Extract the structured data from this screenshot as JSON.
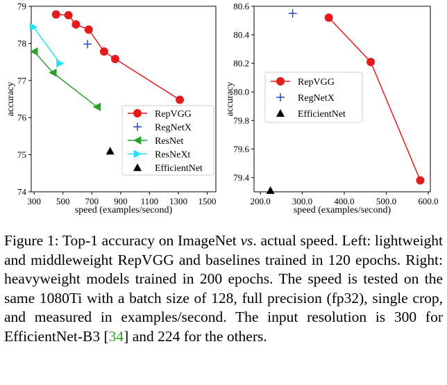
{
  "chart_data": [
    {
      "type": "line",
      "title": "",
      "xlabel": "speed (examples/second)",
      "ylabel": "accuracy",
      "xlim": [
        280,
        1560
      ],
      "ylim": [
        74,
        79
      ],
      "xticks": [
        300,
        500,
        700,
        900,
        1100,
        1300,
        1500
      ],
      "yticks": [
        74,
        75,
        76,
        77,
        78,
        79
      ],
      "grid": false,
      "legend_position": "bottom-right",
      "series": [
        {
          "name": "RepVGG",
          "marker": "circle",
          "color": "#e41a1c",
          "line": true,
          "x": [
            452,
            538,
            590,
            678,
            785,
            862,
            1310
          ],
          "y": [
            78.78,
            78.76,
            78.51,
            78.37,
            77.78,
            77.58,
            76.48
          ]
        },
        {
          "name": "RegNetX",
          "marker": "plus",
          "color": "#1f3fbf",
          "line": false,
          "x": [
            670
          ],
          "y": [
            77.98
          ]
        },
        {
          "name": "ResNet",
          "marker": "triangle-left",
          "color": "#2ca02c",
          "line": true,
          "x": [
            300,
            430,
            735
          ],
          "y": [
            77.78,
            77.21,
            76.29
          ]
        },
        {
          "name": "ResNeXt",
          "marker": "triangle-right",
          "color": "#21e5f5",
          "line": true,
          "x": [
            295,
            480
          ],
          "y": [
            78.44,
            77.46
          ]
        },
        {
          "name": "EfficientNet",
          "marker": "triangle-up",
          "color": "#000000",
          "line": false,
          "x": [
            827
          ],
          "y": [
            75.1
          ]
        }
      ]
    },
    {
      "type": "line",
      "title": "",
      "xlabel": "speed (examples/second)",
      "ylabel": "accuracy",
      "xlim": [
        185,
        605
      ],
      "ylim": [
        79.3,
        80.6
      ],
      "xticks": [
        200,
        300,
        400,
        500,
        600
      ],
      "yticks": [
        79.4,
        79.6,
        79.8,
        80.0,
        80.2,
        80.4,
        80.6
      ],
      "grid": false,
      "legend_position": "center-left",
      "series": [
        {
          "name": "RepVGG",
          "marker": "circle",
          "color": "#e41a1c",
          "line": true,
          "x": [
            363,
            463,
            581
          ],
          "y": [
            80.52,
            80.21,
            79.38
          ]
        },
        {
          "name": "RegNetX",
          "marker": "plus",
          "color": "#1f3fbf",
          "line": false,
          "x": [
            277
          ],
          "y": [
            80.55
          ]
        },
        {
          "name": "EfficientNet",
          "marker": "triangle-up",
          "color": "#000000",
          "line": false,
          "x": [
            224
          ],
          "y": [
            79.31
          ]
        }
      ]
    }
  ],
  "caption": {
    "label": "Figure 1:",
    "p1": " Top-1 accuracy on ImageNet ",
    "vs": "vs",
    "p2": ". actual speed. Left: lightweight and middleweight RepVGG and baselines trained in 120 epochs. Right: heavyweight models trained in 200 epochs. The speed is tested on the same 1080Ti with a batch size of 128, full precision (fp32), single crop, and measured in examples/second. The input resolution is 300 for EfficientNet-B3 [",
    "ref": "34",
    "p3": "] and 224 for the others."
  }
}
